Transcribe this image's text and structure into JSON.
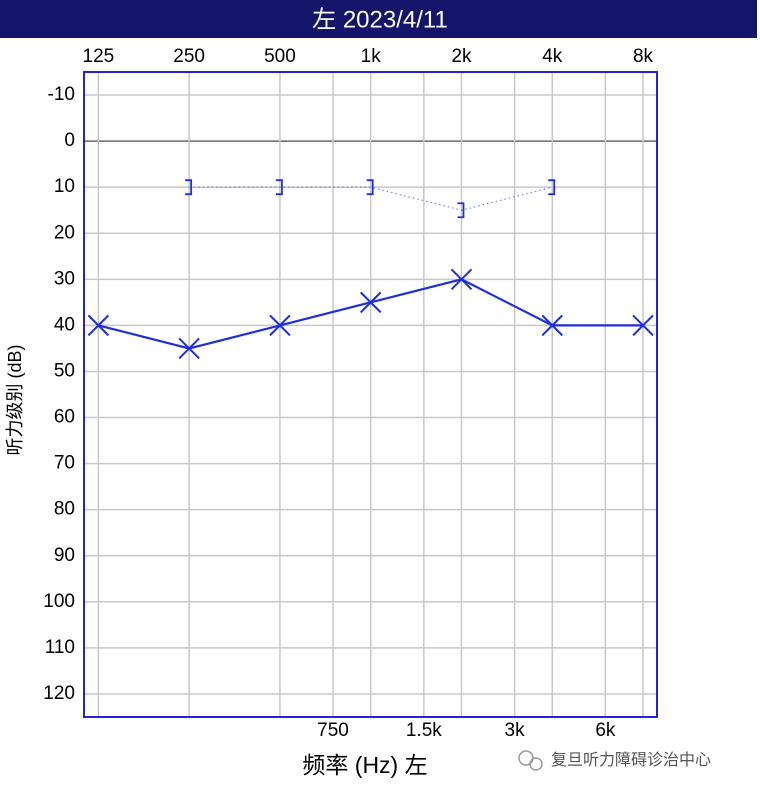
{
  "chart_data": {
    "type": "audiogram",
    "title": "左 2023/4/11",
    "x_label": "频率 (Hz) 左",
    "y_label": "听力级别 (dB)",
    "watermark": "复旦听力障碍诊治中心",
    "x_scale": "log",
    "xlim": [
      112,
      8900
    ],
    "xticks": [
      125,
      250,
      500,
      {
        "value": 1000,
        "label": "1k"
      },
      {
        "value": 2000,
        "label": "2k"
      },
      {
        "value": 4000,
        "label": "4k"
      },
      {
        "value": 8000,
        "label": "8k"
      }
    ],
    "minor_xticks": [
      750,
      {
        "value": 1500,
        "label": "1.5k"
      },
      {
        "value": 3000,
        "label": "3k"
      },
      {
        "value": 6000,
        "label": "6k"
      }
    ],
    "ylim": [
      -15,
      125
    ],
    "y_inverted": true,
    "yticks": [
      -10,
      0,
      10,
      20,
      30,
      40,
      50,
      60,
      70,
      80,
      90,
      100,
      110,
      120
    ],
    "grid": true,
    "series": [
      {
        "color": "#1f2fe0",
        "marker": "x",
        "line": "solid",
        "x": [
          125,
          250,
          500,
          1000,
          2000,
          4000,
          8000
        ],
        "values": [
          40,
          45,
          40,
          35,
          30,
          40,
          40
        ]
      },
      {
        "color": "#1f2fe0",
        "marker": "bracket",
        "line": "dotted",
        "x": [
          250,
          500,
          1000,
          2000,
          4000
        ],
        "values": [
          10,
          10,
          10,
          15,
          10
        ]
      }
    ]
  }
}
